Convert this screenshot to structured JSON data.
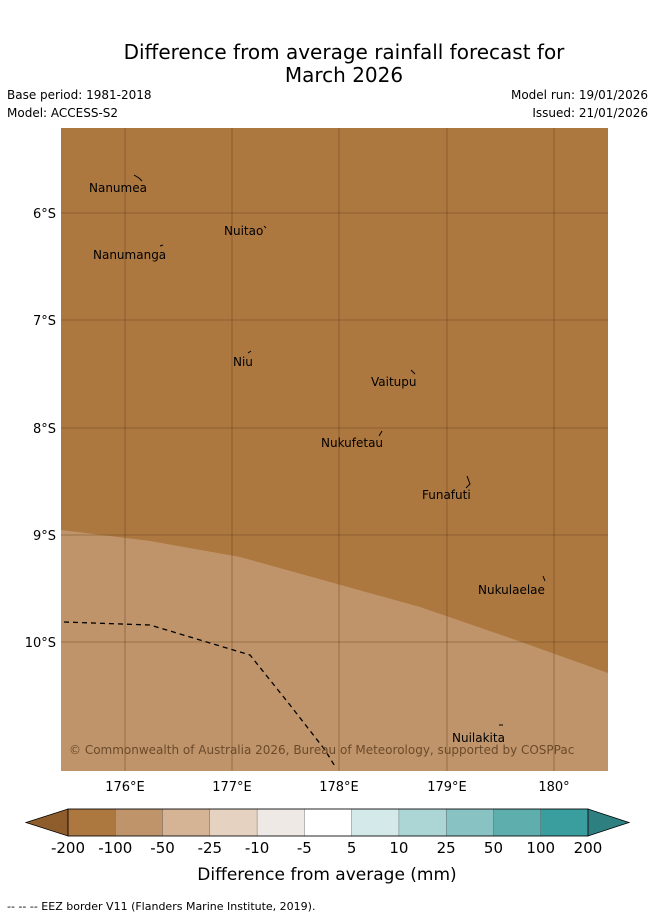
{
  "title_line1": "Difference from average rainfall forecast for",
  "title_line2": "March 2026",
  "base_period": "Base period: 1981-2018",
  "model": "Model: ACCESS-S2",
  "model_run": "Model run: 19/01/2026",
  "issued": "Issued: 21/01/2026",
  "copyright": "© Commonwealth of Australia 2026, Bureau of Meteorology, supported by COSPPac",
  "lat_labels": [
    "6°S",
    "7°S",
    "8°S",
    "9°S",
    "10°S"
  ],
  "lon_labels": [
    "176°E",
    "177°E",
    "178°E",
    "179°E",
    "180°"
  ],
  "islands": [
    "Nanumea",
    "Nuitao",
    "Nanumanga",
    "Niu",
    "Vaitupu",
    "Nukufetau",
    "Funafuti",
    "Nukulaelae",
    "Nuilakita"
  ],
  "colorbar": {
    "title": "Difference from average (mm)",
    "ticks": [
      "-200",
      "-100",
      "-50",
      "-25",
      "-10",
      "-5",
      "5",
      "10",
      "25",
      "50",
      "100",
      "200"
    ],
    "colors": [
      "#ad7840",
      "#c0946a",
      "#d5b496",
      "#e6d2c1",
      "#efe9e6",
      "#ffffff",
      "#d4eaea",
      "#acd6d6",
      "#89c2c2",
      "#5eaeae",
      "#3a9e9e"
    ],
    "under_color": "#8f5d2c",
    "over_color": "#2e7f80"
  },
  "map_colors": {
    "dry_strong": "#ad7840",
    "dry_moderate": "#c0946a"
  },
  "footer": "-- -- -- EEZ border V11 (Flanders Marine Institute, 2019)."
}
